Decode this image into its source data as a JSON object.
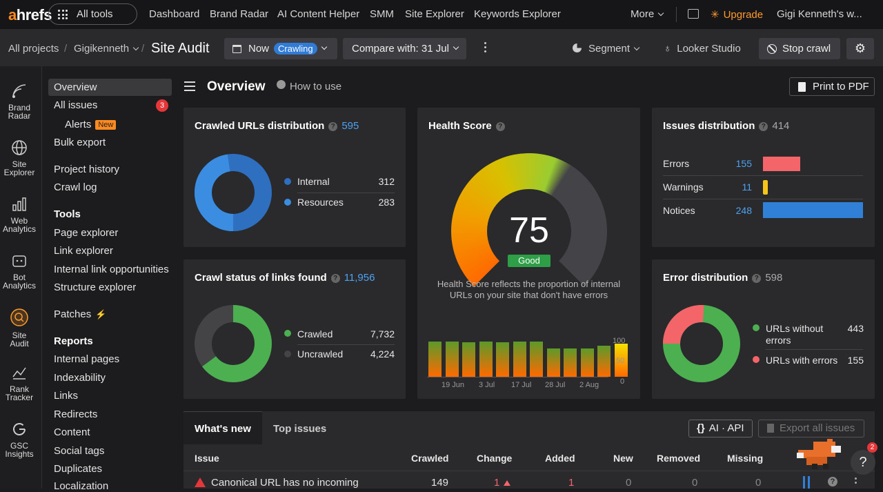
{
  "topbar": {
    "logo_a": "a",
    "logo_rest": "hrefs",
    "all_tools": "All tools",
    "nav": [
      "Dashboard",
      "Brand Radar",
      "AI Content Helper",
      "SMM",
      "Site Explorer",
      "Keywords Explorer"
    ],
    "more": "More",
    "upgrade": "Upgrade",
    "user": "Gigi Kenneth's w..."
  },
  "subbar": {
    "all_projects": "All projects",
    "project": "Gigikenneth",
    "site_audit": "Site Audit",
    "now": "Now",
    "crawling": "Crawling",
    "compare": "Compare with: 31 Jul",
    "segment": "Segment",
    "looker": "Looker Studio",
    "stop": "Stop crawl"
  },
  "rail": [
    {
      "l1": "Brand",
      "l2": "Radar"
    },
    {
      "l1": "Site",
      "l2": "Explorer"
    },
    {
      "l1": "Web",
      "l2": "Analytics"
    },
    {
      "l1": "Bot",
      "l2": "Analytics"
    },
    {
      "l1": "Site",
      "l2": "Audit"
    },
    {
      "l1": "Rank",
      "l2": "Tracker"
    },
    {
      "l1": "GSC",
      "l2": "Insights"
    }
  ],
  "sidebar": {
    "overview": "Overview",
    "all_issues": "All issues",
    "all_issues_count": "3",
    "alerts": "Alerts",
    "alerts_tag": "New",
    "bulk_export": "Bulk export",
    "project_history": "Project history",
    "crawl_log": "Crawl log",
    "tools": "Tools",
    "page_explorer": "Page explorer",
    "link_explorer": "Link explorer",
    "internal_link": "Internal link opportunities",
    "structure": "Structure explorer",
    "patches": "Patches",
    "reports": "Reports",
    "reports_items": [
      "Internal pages",
      "Indexability",
      "Links",
      "Redirects",
      "Content",
      "Social tags",
      "Duplicates",
      "Localization"
    ]
  },
  "main": {
    "title": "Overview",
    "how_to": "How to use",
    "print": "Print to PDF"
  },
  "crawled": {
    "title": "Crawled URLs distribution",
    "total": "595",
    "rows": [
      {
        "label": "Internal",
        "value": "312",
        "color": "#2f6fbf"
      },
      {
        "label": "Resources",
        "value": "283",
        "color": "#3a8de0"
      }
    ]
  },
  "health": {
    "title": "Health Score",
    "score": "75",
    "status": "Good",
    "desc": "Health Score reflects the proportion of internal URLs on your site that don't have errors",
    "ticks": [
      "19 Jun",
      "3 Jul",
      "17 Jul",
      "28 Jul",
      "2 Aug"
    ],
    "yticks": [
      "100",
      "50",
      "0"
    ],
    "bars": [
      78,
      78,
      76,
      78,
      76,
      78,
      78,
      62,
      62,
      62,
      68,
      72
    ]
  },
  "issues": {
    "title": "Issues distribution",
    "total": "414",
    "rows": [
      {
        "label": "Errors",
        "value": "155",
        "color": "#f4656a"
      },
      {
        "label": "Warnings",
        "value": "11",
        "color": "#f5c518"
      },
      {
        "label": "Notices",
        "value": "248",
        "color": "#2f80d6"
      }
    ]
  },
  "status": {
    "title": "Crawl status of links found",
    "total": "11,956",
    "rows": [
      {
        "label": "Crawled",
        "value": "7,732",
        "color": "#4caf50"
      },
      {
        "label": "Uncrawled",
        "value": "4,224",
        "color": "#444446"
      }
    ]
  },
  "errors": {
    "title": "Error distribution",
    "total": "598",
    "rows": [
      {
        "label": "URLs without errors",
        "value": "443",
        "color": "#4caf50"
      },
      {
        "label": "URLs with errors",
        "value": "155",
        "color": "#f4656a"
      }
    ]
  },
  "table": {
    "tabs": [
      "What's new",
      "Top issues"
    ],
    "ai_api": "AI · API",
    "export": "Export all issues",
    "headers": [
      "Issue",
      "Crawled",
      "Change",
      "Added",
      "New",
      "Removed",
      "Missing"
    ],
    "row": {
      "issue": "Canonical URL has no incoming",
      "crawled": "149",
      "change": "1",
      "added": "1",
      "new": "0",
      "removed": "0",
      "missing": "0"
    },
    "help": "?",
    "help_badge": "2"
  }
}
